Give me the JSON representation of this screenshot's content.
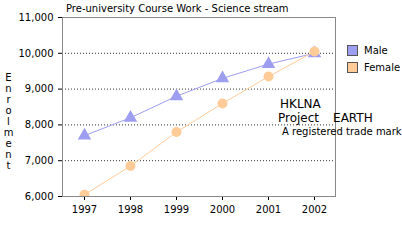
{
  "chart_data": {
    "type": "line",
    "title": "Pre-university Course Work - Science stream",
    "y_label": "Enrolment",
    "categories": [
      "1997",
      "1998",
      "1999",
      "2000",
      "2001",
      "2002"
    ],
    "series": [
      {
        "name": "Male",
        "color": "#9e9ef0",
        "marker": "triangle",
        "values": [
          7700,
          8200,
          8800,
          9300,
          9700,
          10000
        ]
      },
      {
        "name": "Female",
        "color": "#ffcc99",
        "marker": "circle",
        "values": [
          6050,
          6850,
          7800,
          8600,
          9350,
          10050
        ]
      }
    ],
    "ylim": [
      6000,
      11000
    ],
    "yticks": [
      {
        "value": 6000,
        "label": "6,000"
      },
      {
        "value": 7000,
        "label": "7,000"
      },
      {
        "value": 8000,
        "label": "8,000"
      },
      {
        "value": 9000,
        "label": "9,000"
      },
      {
        "value": 10000,
        "label": "10,000"
      },
      {
        "value": 11000,
        "label": "11,000"
      }
    ],
    "grid": true,
    "legend": "right",
    "annotations": [
      "HKLNA",
      "Project",
      "EARTH",
      "A registered trade mark"
    ]
  }
}
